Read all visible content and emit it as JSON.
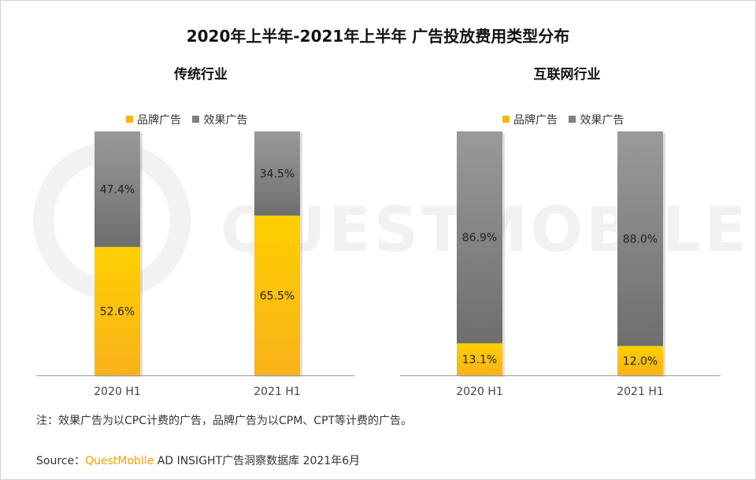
{
  "chart_data": [
    {
      "type": "bar",
      "stacked": true,
      "percent": true,
      "title": "传统行业",
      "categories": [
        "2020 H1",
        "2021 H1"
      ],
      "series": [
        {
          "name": "品牌广告",
          "values": [
            52.6,
            65.5
          ],
          "labels": [
            "52.6%",
            "65.5%"
          ],
          "color": "#f9b70f"
        },
        {
          "name": "效果广告",
          "values": [
            47.4,
            34.5
          ],
          "labels": [
            "47.4%",
            "34.5%"
          ],
          "color": "#7f7f7f"
        }
      ],
      "ylim": [
        0,
        100
      ],
      "legend": "top"
    },
    {
      "type": "bar",
      "stacked": true,
      "percent": true,
      "title": "互联网行业",
      "categories": [
        "2020 H1",
        "2021 H1"
      ],
      "series": [
        {
          "name": "品牌广告",
          "values": [
            13.1,
            12.0
          ],
          "labels": [
            "13.1%",
            "12.0%"
          ],
          "color": "#f9b70f"
        },
        {
          "name": "效果广告",
          "values": [
            86.9,
            88.0
          ],
          "labels": [
            "86.9%",
            "88.0%"
          ],
          "color": "#7f7f7f"
        }
      ],
      "ylim": [
        0,
        100
      ],
      "legend": "top"
    }
  ],
  "page": {
    "title": "2020年上半年-2021年上半年 广告投放费用类型分布",
    "note": "注：效果广告为以CPC计费的广告，品牌广告为以CPM、CPT等计费的广告。",
    "source_prefix": "Source：",
    "source_brand": "QuestMobile",
    "source_rest": " AD INSIGHT广告洞察数据库 2021年6月",
    "watermark": "QUESTMOBILE"
  }
}
